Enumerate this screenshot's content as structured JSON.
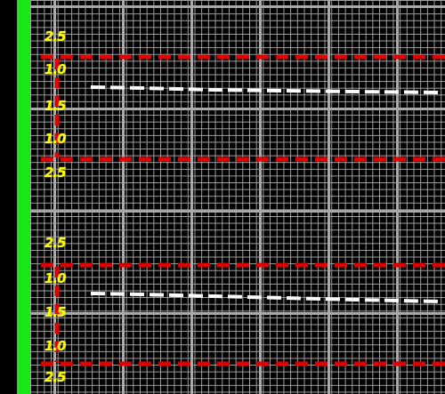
{
  "colors": {
    "background": "#000000",
    "side_bar": "#19e619",
    "grid": "#a9a9a9",
    "limit_line": "#e00000",
    "trace_line": "#ffffff",
    "scale_label": "#ffff00"
  },
  "tracks": [
    {
      "scale_labels": [
        "2.5",
        "1.0",
        "1.5",
        "1.0",
        "2.5"
      ],
      "trace_level": 0.15,
      "upper_limit": 1.0,
      "lower_limit": -1.0
    },
    {
      "scale_labels": [
        "2.5",
        "1.0",
        "1.5",
        "1.0",
        "2.5"
      ],
      "trace_level": 0.2,
      "upper_limit": 1.0,
      "lower_limit": -1.0
    }
  ]
}
